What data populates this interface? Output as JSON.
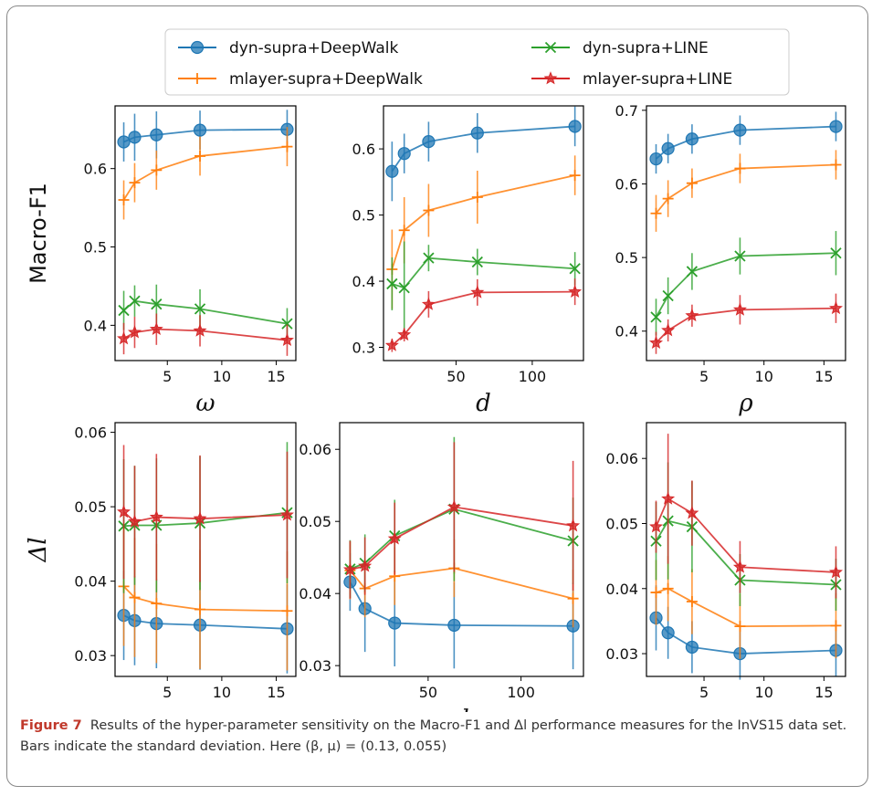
{
  "figure": {
    "legend": {
      "entries": [
        {
          "label": "dyn-supra+DeepWalk",
          "color": "#1f77b4",
          "marker": "circle"
        },
        {
          "label": "dyn-supra+LINE",
          "color": "#2ca02c",
          "marker": "x"
        },
        {
          "label": "mlayer-supra+DeepWalk",
          "color": "#ff7f0e",
          "marker": "plus"
        },
        {
          "label": "mlayer-supra+LINE",
          "color": "#d62728",
          "marker": "star"
        }
      ]
    },
    "caption": {
      "label": "Figure 7",
      "text": "Results of the hyper-parameter sensitivity on the Macro-F1 and Δl performance measures for the InVS15 data set. Bars indicate the standard deviation. Here (β, μ) = (0.13, 0.055)"
    }
  },
  "chart_data": [
    {
      "type": "line",
      "id": "macro-omega",
      "xlabel": "ω",
      "ylabel": "Macro-F1",
      "xlim": [
        0.2,
        16.8
      ],
      "ylim": [
        0.355,
        0.68
      ],
      "xticks": [
        5,
        10,
        15
      ],
      "yticks": [
        0.4,
        0.5,
        0.6
      ],
      "x": [
        1,
        2,
        4,
        8,
        16
      ],
      "series": [
        {
          "name": "dyn-supra+DeepWalk",
          "values": [
            0.634,
            0.64,
            0.643,
            0.649,
            0.65
          ],
          "errors": [
            0.025,
            0.03,
            0.03,
            0.025,
            0.025
          ]
        },
        {
          "name": "mlayer-supra+DeepWalk",
          "values": [
            0.56,
            0.582,
            0.598,
            0.616,
            0.628
          ],
          "errors": [
            0.025,
            0.025,
            0.025,
            0.025,
            0.025
          ]
        },
        {
          "name": "dyn-supra+LINE",
          "values": [
            0.419,
            0.431,
            0.427,
            0.421,
            0.402
          ],
          "errors": [
            0.025,
            0.02,
            0.025,
            0.025,
            0.02
          ]
        },
        {
          "name": "mlayer-supra+LINE",
          "values": [
            0.383,
            0.391,
            0.395,
            0.393,
            0.381
          ],
          "errors": [
            0.02,
            0.02,
            0.02,
            0.02,
            0.02
          ]
        }
      ]
    },
    {
      "type": "line",
      "id": "macro-d",
      "xlabel": "d",
      "ylabel": "",
      "xlim": [
        2.4,
        133.6
      ],
      "ylim": [
        0.28,
        0.665
      ],
      "xticks": [
        50,
        100
      ],
      "yticks": [
        0.3,
        0.4,
        0.5,
        0.6
      ],
      "x": [
        8,
        16,
        32,
        64,
        128
      ],
      "series": [
        {
          "name": "dyn-supra+DeepWalk",
          "values": [
            0.566,
            0.593,
            0.611,
            0.624,
            0.634
          ],
          "errors": [
            0.045,
            0.03,
            0.03,
            0.03,
            0.03
          ]
        },
        {
          "name": "mlayer-supra+DeepWalk",
          "values": [
            0.418,
            0.477,
            0.507,
            0.527,
            0.56
          ],
          "errors": [
            0.06,
            0.05,
            0.04,
            0.04,
            0.03
          ]
        },
        {
          "name": "dyn-supra+LINE",
          "values": [
            0.396,
            0.39,
            0.435,
            0.429,
            0.419
          ],
          "errors": [
            0.04,
            0.07,
            0.02,
            0.02,
            0.025
          ]
        },
        {
          "name": "mlayer-supra+LINE",
          "values": [
            0.303,
            0.319,
            0.365,
            0.383,
            0.384
          ],
          "errors": [
            0.01,
            0.01,
            0.02,
            0.02,
            0.02
          ]
        }
      ]
    },
    {
      "type": "line",
      "id": "macro-rho",
      "xlabel": "ρ",
      "ylabel": "",
      "xlim": [
        0.2,
        16.8
      ],
      "ylim": [
        0.36,
        0.706
      ],
      "xticks": [
        5,
        10,
        15
      ],
      "yticks": [
        0.4,
        0.5,
        0.6,
        0.7
      ],
      "x": [
        1,
        2,
        4,
        8,
        16
      ],
      "series": [
        {
          "name": "dyn-supra+DeepWalk",
          "values": [
            0.634,
            0.648,
            0.661,
            0.673,
            0.678
          ],
          "errors": [
            0.02,
            0.02,
            0.02,
            0.02,
            0.02
          ]
        },
        {
          "name": "mlayer-supra+DeepWalk",
          "values": [
            0.56,
            0.58,
            0.601,
            0.621,
            0.626
          ],
          "errors": [
            0.025,
            0.025,
            0.02,
            0.02,
            0.02
          ]
        },
        {
          "name": "dyn-supra+LINE",
          "values": [
            0.419,
            0.448,
            0.481,
            0.502,
            0.506
          ],
          "errors": [
            0.025,
            0.025,
            0.025,
            0.025,
            0.03
          ]
        },
        {
          "name": "mlayer-supra+LINE",
          "values": [
            0.384,
            0.401,
            0.421,
            0.429,
            0.431
          ],
          "errors": [
            0.015,
            0.015,
            0.015,
            0.02,
            0.02
          ]
        }
      ]
    },
    {
      "type": "line",
      "id": "delta-omega",
      "xlabel": "ω",
      "ylabel": "Δl",
      "xlim": [
        0.2,
        16.8
      ],
      "ylim": [
        0.0272,
        0.0613
      ],
      "xticks": [
        5,
        10,
        15
      ],
      "yticks": [
        0.03,
        0.04,
        0.05,
        0.06
      ],
      "x": [
        1,
        2,
        4,
        8,
        16
      ],
      "series": [
        {
          "name": "dyn-supra+DeepWalk",
          "values": [
            0.0354,
            0.0347,
            0.0343,
            0.0341,
            0.0336
          ],
          "errors": [
            0.006,
            0.006,
            0.006,
            0.006,
            0.006
          ]
        },
        {
          "name": "mlayer-supra+DeepWalk",
          "values": [
            0.0393,
            0.0378,
            0.037,
            0.0362,
            0.036
          ],
          "errors": [
            0.008,
            0.008,
            0.008,
            0.008,
            0.008
          ]
        },
        {
          "name": "dyn-supra+LINE",
          "values": [
            0.0474,
            0.0475,
            0.0475,
            0.0478,
            0.0492
          ],
          "errors": [
            0.009,
            0.008,
            0.009,
            0.009,
            0.0095
          ]
        },
        {
          "name": "mlayer-supra+LINE",
          "values": [
            0.0493,
            0.048,
            0.0486,
            0.0484,
            0.0489
          ],
          "errors": [
            0.009,
            0.0075,
            0.0085,
            0.0085,
            0.0085
          ]
        }
      ]
    },
    {
      "type": "line",
      "id": "delta-d",
      "xlabel": "d",
      "ylabel": "",
      "xlim": [
        2.4,
        133.6
      ],
      "ylim": [
        0.0285,
        0.0637
      ],
      "xticks": [
        50,
        100
      ],
      "yticks": [
        0.03,
        0.04,
        0.05,
        0.06
      ],
      "x": [
        8,
        16,
        32,
        64,
        128
      ],
      "series": [
        {
          "name": "dyn-supra+DeepWalk",
          "values": [
            0.0416,
            0.0379,
            0.0359,
            0.0356,
            0.0355
          ],
          "errors": [
            0.004,
            0.006,
            0.006,
            0.006,
            0.006
          ]
        },
        {
          "name": "mlayer-supra+DeepWalk",
          "values": [
            0.0432,
            0.0407,
            0.0424,
            0.0435,
            0.0393
          ],
          "errors": [
            0.004,
            0.004,
            0.004,
            0.004,
            0.004
          ]
        },
        {
          "name": "dyn-supra+LINE",
          "values": [
            0.0434,
            0.0442,
            0.048,
            0.0517,
            0.0473
          ],
          "errors": [
            0.004,
            0.004,
            0.005,
            0.01,
            0.006
          ]
        },
        {
          "name": "mlayer-supra+LINE",
          "values": [
            0.0433,
            0.0438,
            0.0476,
            0.052,
            0.0494
          ],
          "errors": [
            0.004,
            0.004,
            0.005,
            0.009,
            0.009
          ]
        }
      ]
    },
    {
      "type": "line",
      "id": "delta-rho",
      "xlabel": "ρ",
      "ylabel": "",
      "xlim": [
        0.2,
        16.8
      ],
      "ylim": [
        0.0265,
        0.0655
      ],
      "xticks": [
        5,
        10,
        15
      ],
      "yticks": [
        0.03,
        0.04,
        0.05,
        0.06
      ],
      "x": [
        1,
        2,
        4,
        8,
        16
      ],
      "series": [
        {
          "name": "dyn-supra+DeepWalk",
          "values": [
            0.0355,
            0.0332,
            0.031,
            0.03,
            0.0305
          ],
          "errors": [
            0.005,
            0.004,
            0.004,
            0.004,
            0.004
          ]
        },
        {
          "name": "mlayer-supra+DeepWalk",
          "values": [
            0.0394,
            0.04,
            0.038,
            0.0342,
            0.0343
          ],
          "errors": [
            0.005,
            0.005,
            0.005,
            0.005,
            0.005
          ]
        },
        {
          "name": "dyn-supra+LINE",
          "values": [
            0.0473,
            0.0504,
            0.0495,
            0.0413,
            0.0406
          ],
          "errors": [
            0.006,
            0.009,
            0.007,
            0.004,
            0.004
          ]
        },
        {
          "name": "mlayer-supra+LINE",
          "values": [
            0.0495,
            0.0538,
            0.0516,
            0.0433,
            0.0425
          ],
          "errors": [
            0.004,
            0.01,
            0.005,
            0.004,
            0.004
          ]
        }
      ]
    }
  ]
}
